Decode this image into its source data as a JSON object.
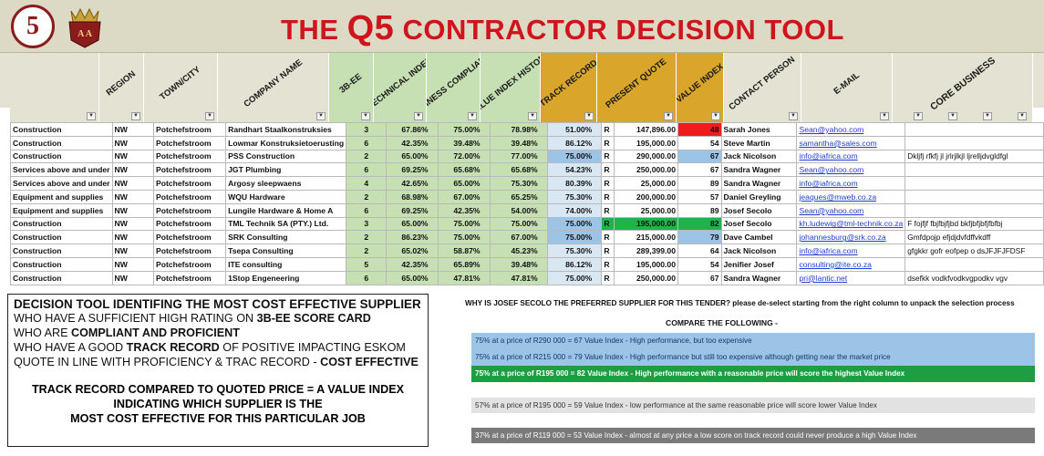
{
  "header": {
    "title_prefix": "THE ",
    "title_q5": "Q5",
    "title_suffix": " CONTRACTOR DECISION TOOL",
    "logo_text": "5",
    "crest_text": "A A"
  },
  "columns": [
    {
      "key": "region",
      "label": "REGION"
    },
    {
      "key": "town",
      "label": "TOWN/CITY"
    },
    {
      "key": "company",
      "label": "COMPANY NAME"
    },
    {
      "key": "bee",
      "label": "3B-EE"
    },
    {
      "key": "tech",
      "label": "TECHNICAL INDEX"
    },
    {
      "key": "biz",
      "label": "BUSINESS COMPLIANCE"
    },
    {
      "key": "vih",
      "label": "VALUE INDEX HISTORY"
    },
    {
      "key": "track",
      "label": "TRACK RECORD"
    },
    {
      "key": "quote",
      "label": "PRESENT QUOTE"
    },
    {
      "key": "vi",
      "label": "VALUE INDEX"
    },
    {
      "key": "contact",
      "label": "CONTACT PERSON"
    },
    {
      "key": "email",
      "label": "E-MAIL"
    },
    {
      "key": "core",
      "label": "CORE BUSINESS"
    }
  ],
  "rows": [
    {
      "category": "Construction",
      "region": "NW",
      "town": "Potchefstroom",
      "company": "Randhart Staalkonstruksies",
      "bee": "3",
      "tech": "67.86%",
      "biz": "75.00%",
      "vih": "78.98%",
      "track": "51.00%",
      "cur": "R",
      "quote": "147,896.00",
      "vi": "48",
      "contact": "Sarah Jones",
      "email": "Sean@yahoo.com",
      "core": ""
    },
    {
      "category": "Construction",
      "region": "NW",
      "town": "Potchefstroom",
      "company": "Lowmar Konstruksietoerusting",
      "bee": "6",
      "tech": "42.35%",
      "biz": "39.48%",
      "vih": "39.48%",
      "track": "86.12%",
      "cur": "R",
      "quote": "195,000.00",
      "vi": "54",
      "contact": "Steve Martin",
      "email": "samantha@sales.com",
      "core": ""
    },
    {
      "category": "Construction",
      "region": "NW",
      "town": "Potchefstroom",
      "company": "PSS Construction",
      "bee": "2",
      "tech": "65.00%",
      "biz": "72.00%",
      "vih": "77.00%",
      "track": "75.00%",
      "cur": "R",
      "quote": "290,000.00",
      "vi": "67",
      "contact": "Jack Nicolson",
      "email": "info@iafrica.com",
      "core": "Dkljfj rfkfj jl jrlrjlkjl ljrelljdvgldfgl"
    },
    {
      "category": "Services above and under",
      "region": "NW",
      "town": "Potchefstroom",
      "company": "JGT Plumbing",
      "bee": "6",
      "tech": "69.25%",
      "biz": "65.68%",
      "vih": "65.68%",
      "track": "54.23%",
      "cur": "R",
      "quote": "250,000.00",
      "vi": "67",
      "contact": "Sandra Wagner",
      "email": "Sean@yahoo.com",
      "core": ""
    },
    {
      "category": "Services above and under",
      "region": "NW",
      "town": "Potchefstroom",
      "company": "Argosy sleepwaens",
      "bee": "4",
      "tech": "42.65%",
      "biz": "65.00%",
      "vih": "75.30%",
      "track": "80.39%",
      "cur": "R",
      "quote": "25,000.00",
      "vi": "89",
      "contact": "Sandra Wagner",
      "email": "info@iafrica.com",
      "core": ""
    },
    {
      "category": "Equipment and supplies",
      "region": "NW",
      "town": "Potchefstroom",
      "company": "WQU Hardware",
      "bee": "2",
      "tech": "68.98%",
      "biz": "67.00%",
      "vih": "65.25%",
      "track": "75.30%",
      "cur": "R",
      "quote": "200,000.00",
      "vi": "57",
      "contact": "Daniel Greyling",
      "email": "jeaques@mweb.co.za",
      "core": ""
    },
    {
      "category": "Equipment and supplies",
      "region": "NW",
      "town": "Potchefstroom",
      "company": "Lungile Hardware & Home A",
      "bee": "6",
      "tech": "69.25%",
      "biz": "42.35%",
      "vih": "54.00%",
      "track": "74.00%",
      "cur": "R",
      "quote": "25,000.00",
      "vi": "89",
      "contact": "Josef Secolo",
      "email": "Sean@yahoo.com",
      "core": ""
    },
    {
      "category": "Construction",
      "region": "NW",
      "town": "Potchefstroom",
      "company": "TML Technik SA (PTY.) Ltd.",
      "bee": "3",
      "tech": "65.00%",
      "biz": "75.00%",
      "vih": "75.00%",
      "track": "75.00%",
      "cur": "R",
      "quote": "195,000.00",
      "vi": "82",
      "contact": "Josef Secolo",
      "email": "kh.ludewig@tml-technik.co.za",
      "core": "F fojfjf fbjfbjfjbd bkfjbfjbfjfbfbj"
    },
    {
      "category": "Construction",
      "region": "NW",
      "town": "Potchefstroom",
      "company": "SRK Consulting",
      "bee": "2",
      "tech": "86.23%",
      "biz": "75.00%",
      "vih": "67.00%",
      "track": "75.00%",
      "cur": "R",
      "quote": "215,000.00",
      "vi": "79",
      "contact": "Dave Cambel",
      "email": "johannesburg@srk.co.za",
      "core": "Gmfdpojp efjdjdvfdffvkdff"
    },
    {
      "category": "Construction",
      "region": "NW",
      "town": "Potchefstroom",
      "company": "Tsepa Consulting",
      "bee": "2",
      "tech": "65.02%",
      "biz": "58.87%",
      "vih": "45.23%",
      "track": "75.30%",
      "cur": "R",
      "quote": "289,399.00",
      "vi": "64",
      "contact": "Jack Nicolson",
      "email": "info@iafrica.com",
      "core": "gfgkkr gofr eofpep o dsJFJFJFDSF"
    },
    {
      "category": "Construction",
      "region": "NW",
      "town": "Potchefstroom",
      "company": "ITE consulting",
      "bee": "5",
      "tech": "42.35%",
      "biz": "65.89%",
      "vih": "39.48%",
      "track": "86.12%",
      "cur": "R",
      "quote": "195,000.00",
      "vi": "54",
      "contact": "Jenifier Josef",
      "email": "consulting@ite.co.za",
      "core": ""
    },
    {
      "category": "Construction",
      "region": "NW",
      "town": "Potchefstroom",
      "company": "1Stop Engeneering",
      "bee": "6",
      "tech": "65.00%",
      "biz": "47.81%",
      "vih": "47.81%",
      "track": "75.00%",
      "cur": "R",
      "quote": "250,000.00",
      "vi": "67",
      "contact": "Sandra Wagner",
      "email": "pri@lantic.net",
      "core": "dsefkk vodkfvodkvgpodkv  vgv"
    }
  ],
  "decision": {
    "heading": "DECISION TOOL IDENTIFING THE MOST COST EFFECTIVE SUPPLIER",
    "c1_a": "WHO HAVE A SUFFICIENT HIGH RATING ON ",
    "c1_b": "3B-EE SCORE CARD",
    "c2_a": "WHO ARE ",
    "c2_b": "COMPLIANT AND PROFICIENT",
    "c3_a": "WHO HAVE A GOOD ",
    "c3_b": "TRACK RECORD",
    "c3_c": " OF POSITIVE IMPACTING ESKOM",
    "c4_a": "QUOTE IN LINE WITH PROFICIENCY & TRAC RECORD - ",
    "c4_b": "COST EFFECTIVE",
    "f1": "TRACK RECORD COMPARED TO QUOTED PRICE =  A VALUE INDEX",
    "f2": "INDICATING WHICH SUPPLIER IS THE",
    "f3": "MOST COST EFFECTIVE FOR THIS PARTICULAR JOB"
  },
  "explain": {
    "why": "WHY IS JOSEF SECOLO THE PREFERRED SUPPLIER FOR THIS TENDER? please de-select starting from the right column to unpack the selection process",
    "compare": "COMPARE THE FOLLOWING -",
    "band1": "75% at a price of R290 000 = 67 Value Index  - High performance, but  too expensive",
    "band2": "75% at a price of R215 000 = 79 Value Index  - High performance but still too expensive although getting near the market price",
    "band3": "75% at a price of R195 000 = 82 Value Index - High performance with a reasonable price will score the highest Value Index",
    "band4": "57% at a price of R195 000 = 59 Value Index  - low performance at the same reasonable price will score lower Value Index",
    "band5": "37% at a price of R119 000 = 53 Value Index  - almost at any price a low score on track record could never produce a high Value Index"
  },
  "colors": {
    "title_red": "#d0141d",
    "track_gold": "#d9a52a",
    "value_green": "#22b24c",
    "value_red": "#ee1c1c",
    "band_blue": "#9cc4e6"
  }
}
